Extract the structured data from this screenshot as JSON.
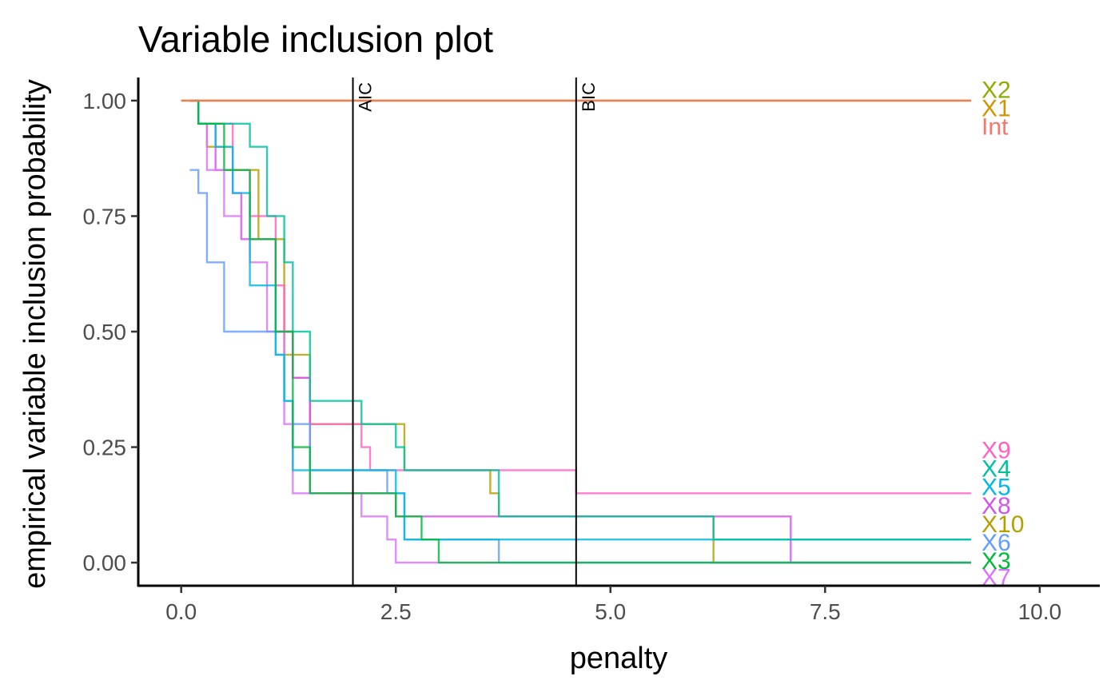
{
  "chart_data": {
    "type": "line",
    "title": "Variable inclusion plot",
    "xlabel": "penalty",
    "ylabel": "empirical variable inclusion probability",
    "xlim": [
      -0.5,
      10.7
    ],
    "ylim": [
      -0.05,
      1.05
    ],
    "xticks": [
      0,
      2.5,
      5,
      7.5,
      10
    ],
    "xtick_labels": [
      "0.0",
      "2.5",
      "5.0",
      "7.5",
      "10.0"
    ],
    "yticks": [
      0,
      0.25,
      0.5,
      0.75,
      1
    ],
    "ytick_labels": [
      "0.00",
      "0.25",
      "0.50",
      "0.75",
      "1.00"
    ],
    "grid": false,
    "legend": "none",
    "vlines": [
      {
        "x": 2,
        "label": "AIC"
      },
      {
        "x": 4.6,
        "label": "BIC"
      }
    ],
    "step_type": "hv",
    "series": [
      {
        "name": "Int",
        "color": "#F8766D",
        "label_y": 0.945,
        "x": [
          0,
          9.2
        ],
        "y": [
          1,
          1
        ]
      },
      {
        "name": "X1",
        "color": "#D39200",
        "label_y": 0.985,
        "x": [
          0,
          9.2
        ],
        "y": [
          1,
          1
        ]
      },
      {
        "name": "X2",
        "color": "#93AA00",
        "label_y": 1.025,
        "x": [
          0,
          9.2
        ],
        "y": [
          1,
          1
        ]
      },
      {
        "name": "X3",
        "color": "#00BA38",
        "label_y": 0.005,
        "x": [
          0.1,
          0.2,
          0.5,
          0.8,
          1.1,
          1.3,
          1.5,
          2.5,
          2.8,
          3.0,
          9.2
        ],
        "y": [
          1,
          0.95,
          0.85,
          0.7,
          0.5,
          0.25,
          0.15,
          0.1,
          0.05,
          0,
          0
        ]
      },
      {
        "name": "X4",
        "color": "#00C19F",
        "label_y": 0.205,
        "x": [
          0.1,
          0.2,
          0.8,
          1.0,
          1.2,
          1.3,
          1.5,
          2.1,
          2.5,
          2.6,
          3.7,
          6.2,
          9.2
        ],
        "y": [
          1,
          0.95,
          0.9,
          0.75,
          0.65,
          0.5,
          0.35,
          0.3,
          0.25,
          0.2,
          0.1,
          0.05,
          0.05
        ]
      },
      {
        "name": "X5",
        "color": "#00B9E3",
        "label_y": 0.165,
        "x": [
          0.1,
          0.2,
          0.4,
          0.6,
          0.8,
          1.1,
          1.2,
          1.3,
          2.0,
          2.5,
          2.6,
          3.7,
          9.2
        ],
        "y": [
          1,
          0.95,
          0.9,
          0.8,
          0.6,
          0.45,
          0.35,
          0.2,
          0.2,
          0.15,
          0.05,
          0.05,
          0.05
        ]
      },
      {
        "name": "X6",
        "color": "#619CFF",
        "label_y": 0.045,
        "x": [
          0.1,
          0.2,
          0.3,
          0.5,
          1.1,
          1.2,
          1.3,
          1.5,
          2.4,
          2.6,
          3.7,
          9.2
        ],
        "y": [
          0.85,
          0.8,
          0.65,
          0.5,
          0.45,
          0.35,
          0.3,
          0.2,
          0.15,
          0.05,
          0,
          0
        ]
      },
      {
        "name": "X7",
        "color": "#DB72FB",
        "label_y": -0.03,
        "x": [
          0.1,
          0.2,
          0.3,
          0.5,
          0.7,
          0.8,
          1.0,
          1.2,
          1.3,
          2.1,
          2.4,
          2.5,
          9.2
        ],
        "y": [
          1,
          0.95,
          0.85,
          0.75,
          0.7,
          0.65,
          0.5,
          0.3,
          0.15,
          0.1,
          0.05,
          0,
          0
        ]
      },
      {
        "name": "X8",
        "color": "#D355E8",
        "label_y": 0.125,
        "x": [
          0.1,
          0.2,
          0.4,
          0.6,
          0.7,
          1.1,
          1.3,
          1.5,
          2.5,
          7.1,
          9.2
        ],
        "y": [
          1,
          0.95,
          0.85,
          0.8,
          0.7,
          0.5,
          0.4,
          0.15,
          0.1,
          0,
          0
        ]
      },
      {
        "name": "X9",
        "color": "#FF61C3",
        "label_y": 0.245,
        "x": [
          0.1,
          0.2,
          0.6,
          0.8,
          1.1,
          1.2,
          1.3,
          1.5,
          2.1,
          2.2,
          4.6,
          9.2
        ],
        "y": [
          1,
          0.95,
          0.85,
          0.75,
          0.6,
          0.5,
          0.4,
          0.3,
          0.25,
          0.2,
          0.15,
          0.15
        ]
      },
      {
        "name": "X10",
        "color": "#B3A000",
        "label_y": 0.085,
        "x": [
          0.2,
          0.3,
          0.6,
          0.9,
          1.2,
          1.5,
          2.6,
          3.6,
          3.7,
          6.2,
          9.2
        ],
        "y": [
          0.95,
          0.9,
          0.85,
          0.7,
          0.45,
          0.3,
          0.2,
          0.15,
          0.1,
          0,
          0
        ]
      }
    ]
  }
}
